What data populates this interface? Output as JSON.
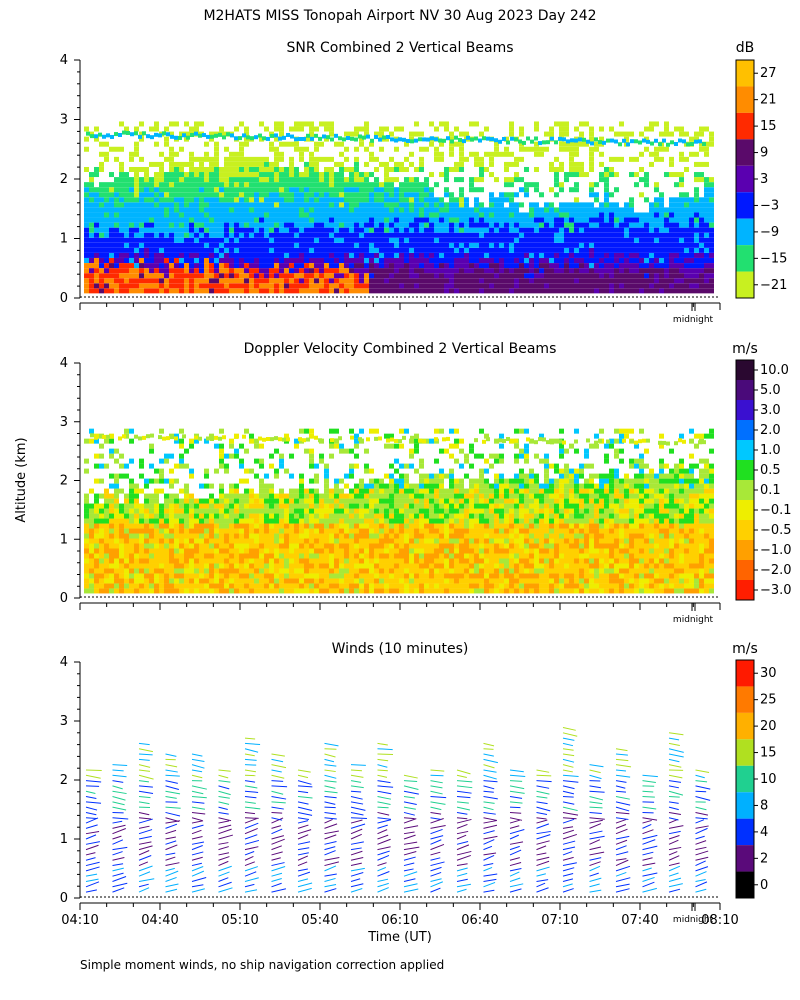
{
  "figure_title": "M2HATS MISS Tonopah Airport NV  30 Aug 2023 Day 242",
  "footnote": "Simple moment winds, no ship navigation correction applied",
  "ylabel": "Altitude (km)",
  "xlabel": "Time (UT)",
  "midnight_label": "midnight",
  "chart_data": [
    {
      "type": "heatmap",
      "title": "SNR Combined 2 Vertical Beams",
      "unit": "dB",
      "ylim": [
        0,
        4
      ],
      "yticks": [
        "0",
        "1",
        "2",
        "3",
        "4"
      ],
      "colorbar_labels": [
        "27",
        "21",
        "15",
        "9",
        "3",
        "−3",
        "−9",
        "−15",
        "−21"
      ],
      "colorbar_colors": [
        "#ffc000",
        "#ff8c00",
        "#ff2a00",
        "#5a0a6a",
        "#5a00b0",
        "#0018ff",
        "#00b4ff",
        "#22e070",
        "#c8f020"
      ]
    },
    {
      "type": "heatmap",
      "title": "Doppler Velocity Combined 2 Vertical Beams",
      "unit": "m/s",
      "ylim": [
        0,
        4
      ],
      "yticks": [
        "0",
        "1",
        "2",
        "3",
        "4"
      ],
      "colorbar_labels": [
        "10.0",
        "5.0",
        "3.0",
        "2.0",
        "1.0",
        "0.5",
        "0.1",
        "−0.1",
        "−0.5",
        "−1.0",
        "−2.0",
        "−3.0"
      ],
      "colorbar_colors": [
        "#2a0830",
        "#4a0a7a",
        "#3a10d0",
        "#0070ff",
        "#00c8ff",
        "#20e020",
        "#a8e838",
        "#eeee00",
        "#ffd000",
        "#ffa000",
        "#ff6400",
        "#ff1e00"
      ]
    },
    {
      "type": "wind_barbs",
      "title": "Winds (10 minutes)",
      "unit": "m/s",
      "ylim": [
        0,
        4
      ],
      "yticks": [
        "0",
        "1",
        "2",
        "3",
        "4"
      ],
      "xticks": [
        "04:10",
        "04:40",
        "05:10",
        "05:40",
        "06:10",
        "06:40",
        "07:10",
        "07:40",
        "08:10"
      ],
      "colorbar_labels": [
        "30",
        "25",
        "20",
        "15",
        "10",
        "8",
        "4",
        "2",
        "0"
      ],
      "colorbar_colors": [
        "#ff1a00",
        "#ff7a00",
        "#ffb000",
        "#b0e020",
        "#20d090",
        "#00b0ff",
        "#0030ff",
        "#5a0a7a",
        "#000000"
      ]
    }
  ]
}
